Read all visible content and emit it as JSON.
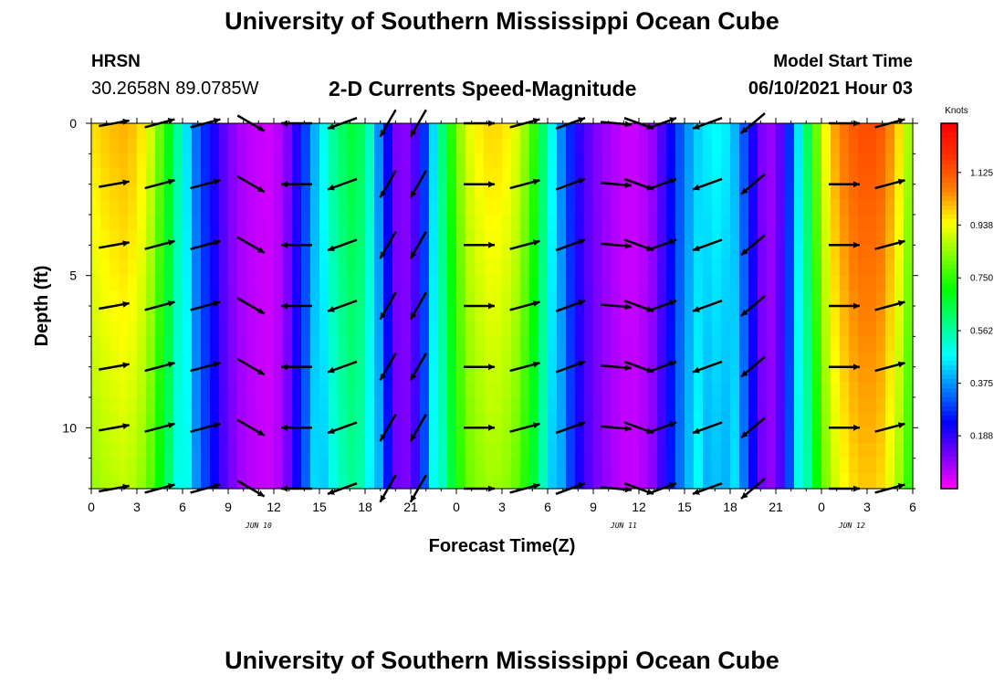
{
  "header": {
    "title": "University of Southern Mississippi Ocean Cube",
    "station_name": "HRSN",
    "station_coords": "30.2658N  89.0785W",
    "subtitle": "2-D Currents Speed-Magnitude",
    "model_start_label": "Model Start Time",
    "model_start_value": "06/10/2021 Hour 03"
  },
  "footer": {
    "title": "University of Southern Mississippi Ocean Cube"
  },
  "chart_data": {
    "type": "heatmap",
    "title": "2-D Currents Speed-Magnitude",
    "xlabel": "Forecast Time(Z)",
    "ylabel": "Depth (ft)",
    "x_tick_labels": [
      "0",
      "3",
      "6",
      "9",
      "12",
      "15",
      "18",
      "21",
      "0",
      "3",
      "6",
      "9",
      "12",
      "15",
      "18",
      "21",
      "0",
      "3",
      "6"
    ],
    "x_range_hours": [
      0,
      54
    ],
    "date_labels": [
      {
        "label": "JUN 10",
        "hour": 11
      },
      {
        "label": "JUN 11",
        "hour": 35
      },
      {
        "label": "JUN 12",
        "hour": 50
      }
    ],
    "y_tick_labels": [
      "0",
      "5",
      "10"
    ],
    "y_ticks": [
      0,
      5,
      10
    ],
    "y_range_ft": [
      0,
      12
    ],
    "colorbar": {
      "unit_label": "Knots",
      "range": [
        0,
        1.3
      ],
      "tick_labels": [
        "1.125",
        "0.938",
        "0.750",
        "0.562",
        "0.375",
        "0.188"
      ],
      "ticks": [
        1.125,
        0.938,
        0.75,
        0.562,
        0.375,
        0.188
      ],
      "colormap": [
        "#ff00ff",
        "#7a00ff",
        "#0000ff",
        "#0080ff",
        "#00ffff",
        "#00ff80",
        "#00ff00",
        "#80ff00",
        "#ffff00",
        "#ff8000",
        "#ff3000",
        "#ff0000"
      ]
    },
    "speed_profile_hours": [
      0,
      1,
      2,
      3,
      4,
      5,
      6,
      7,
      8,
      9,
      10,
      11,
      12,
      13,
      14,
      15,
      16,
      17,
      18,
      19,
      20,
      21,
      22,
      23,
      24,
      25,
      26,
      27,
      28,
      29,
      30,
      31,
      32,
      33,
      34,
      35,
      36,
      37,
      38,
      39,
      40,
      41,
      42,
      43,
      44,
      45,
      46,
      47,
      48,
      49,
      50,
      51,
      52,
      53,
      54
    ],
    "speed_profile_knots": [
      0.97,
      1.0,
      1.02,
      1.0,
      0.9,
      0.72,
      0.5,
      0.32,
      0.22,
      0.12,
      0.07,
      0.05,
      0.04,
      0.12,
      0.28,
      0.45,
      0.58,
      0.66,
      0.62,
      0.34,
      0.12,
      0.1,
      0.3,
      0.58,
      0.82,
      0.94,
      0.98,
      0.98,
      0.92,
      0.78,
      0.55,
      0.34,
      0.2,
      0.12,
      0.08,
      0.05,
      0.05,
      0.1,
      0.22,
      0.35,
      0.44,
      0.48,
      0.45,
      0.3,
      0.12,
      0.08,
      0.3,
      0.6,
      0.9,
      1.05,
      1.12,
      1.15,
      1.12,
      1.0,
      0.82
    ],
    "arrow_hours": [
      1.5,
      4.5,
      7.5,
      10.5,
      13.5,
      16.5,
      19.5,
      21.5,
      25.5,
      28.5,
      31.5,
      34.5,
      36,
      37.5,
      40.5,
      43.5,
      49.5,
      52.5
    ],
    "arrow_depths_ft": [
      0,
      2,
      4,
      6,
      8,
      10,
      12
    ],
    "arrow_directions_deg": [
      80,
      75,
      75,
      120,
      270,
      250,
      210,
      210,
      90,
      75,
      70,
      95,
      110,
      70,
      250,
      230,
      90,
      75
    ]
  }
}
